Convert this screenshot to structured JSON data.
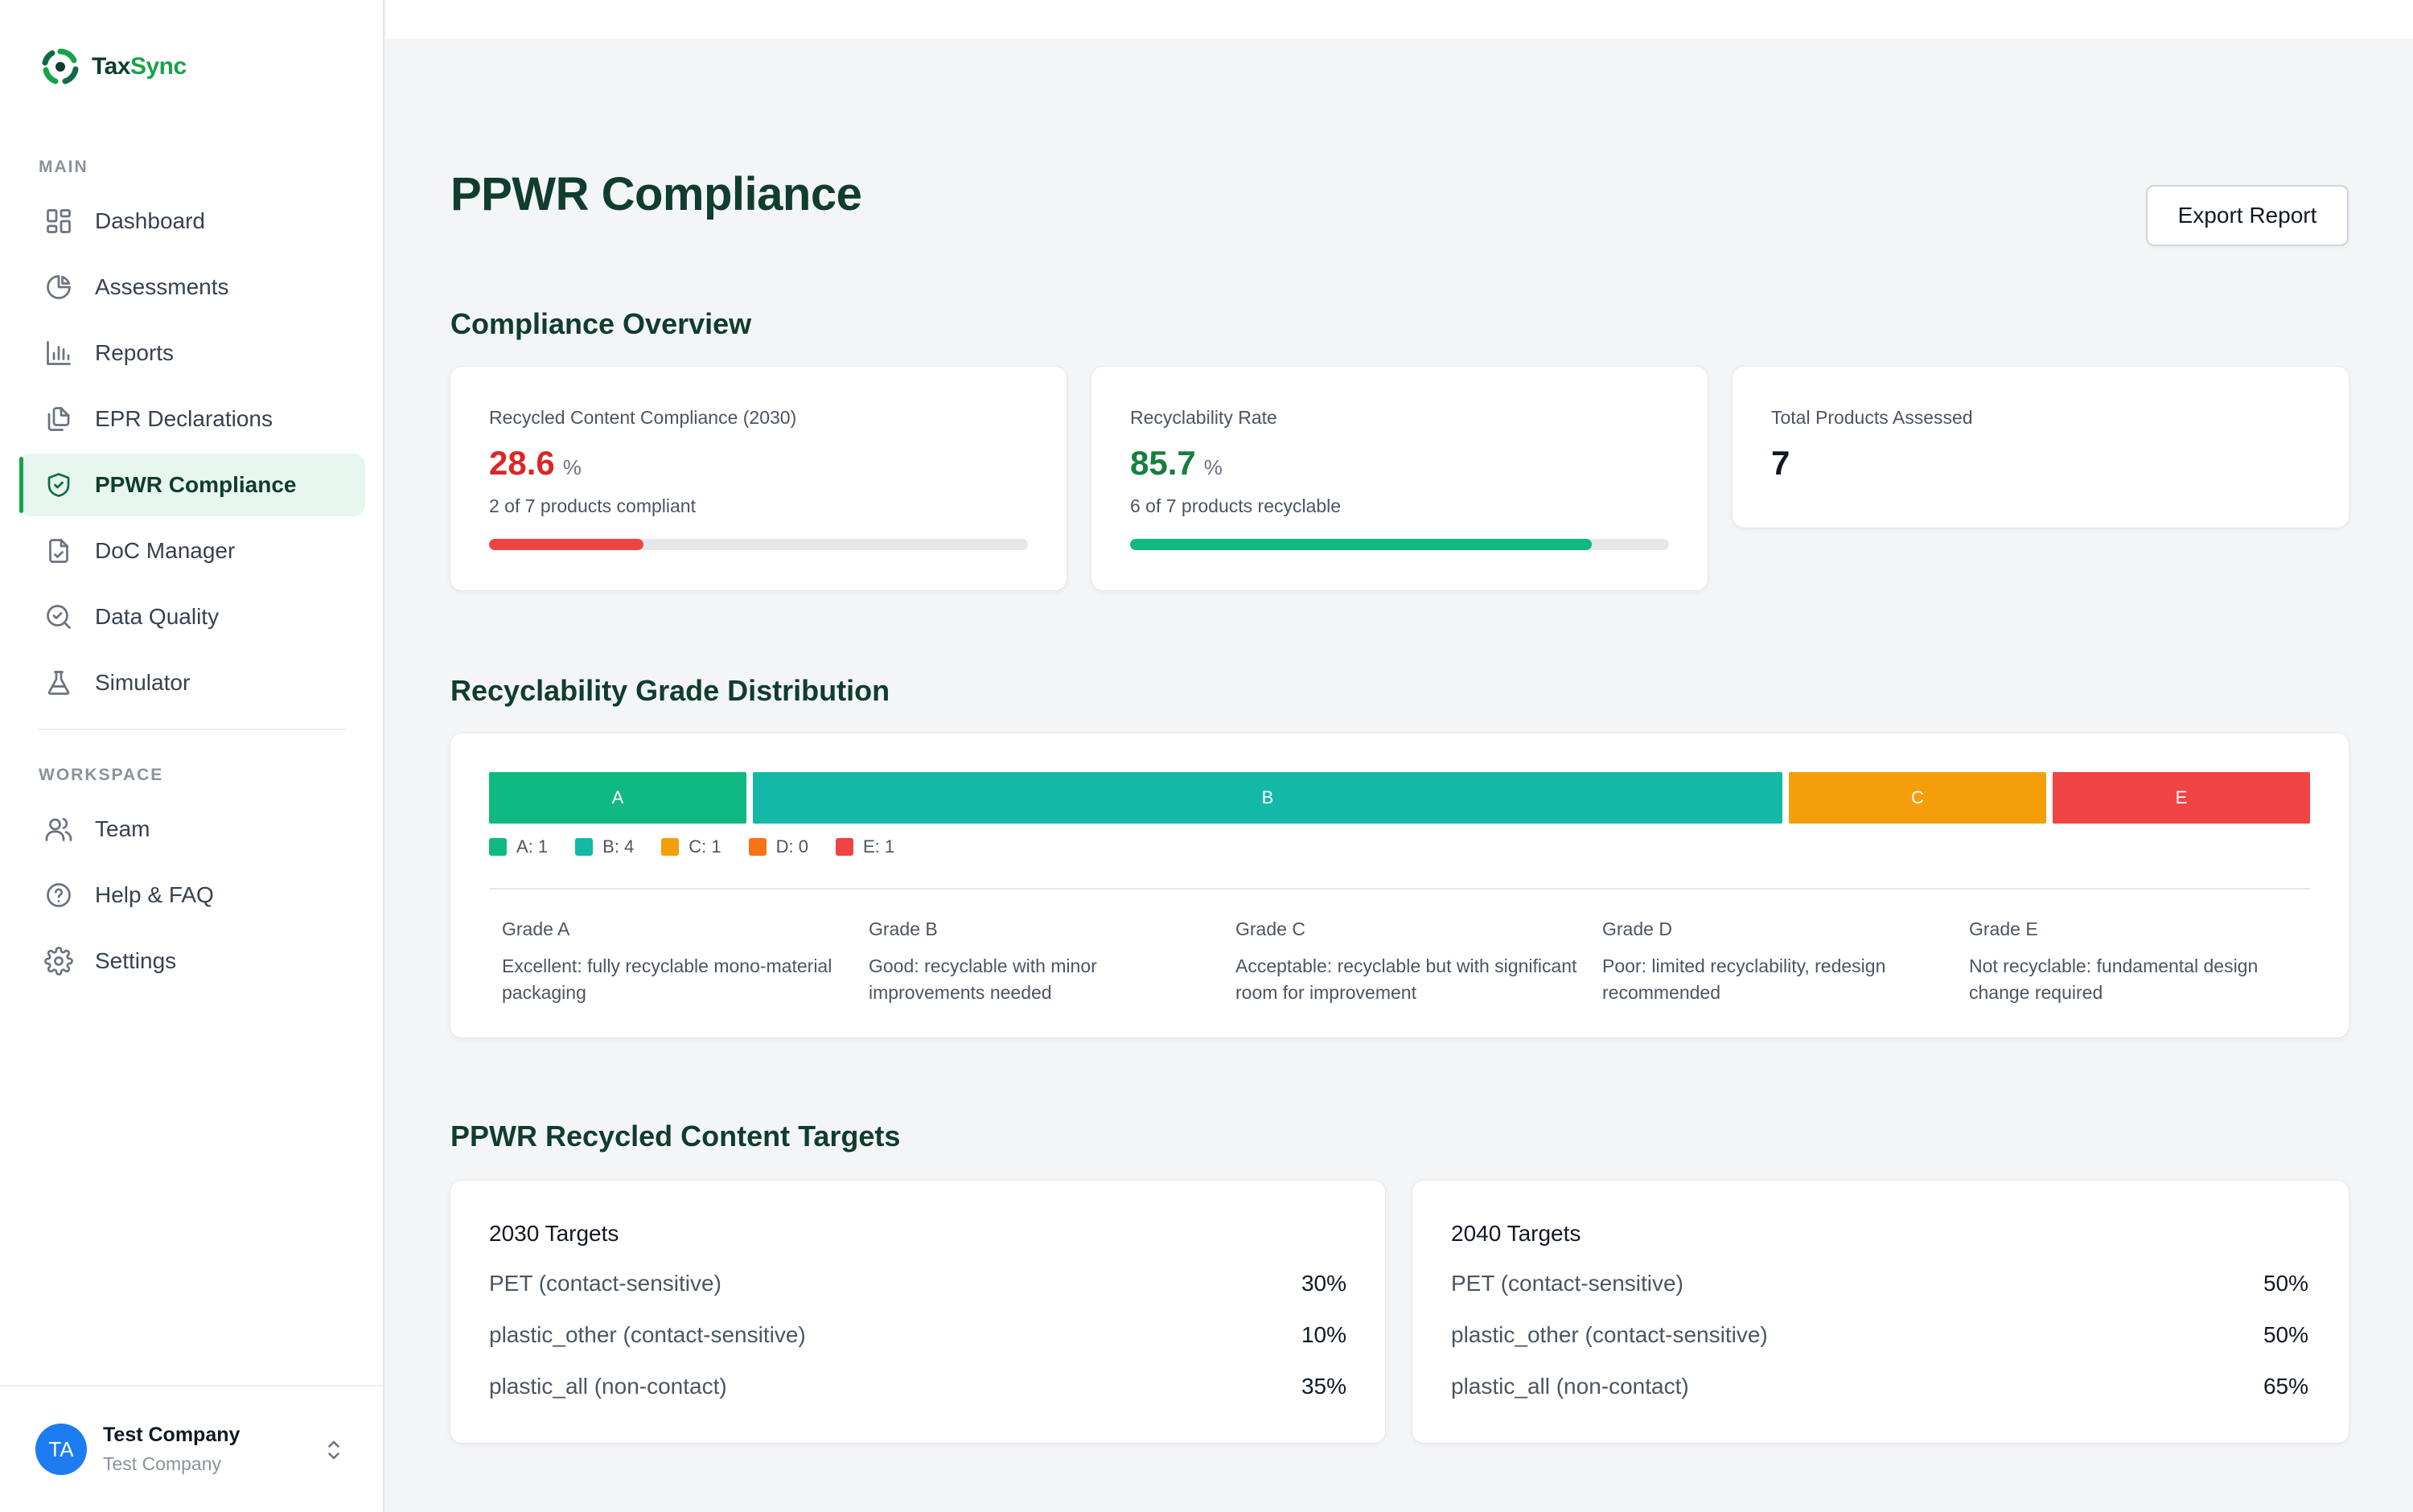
{
  "brand": {
    "name_part1": "Tax",
    "name_part2": "Sync",
    "accent": "#16a34a"
  },
  "sidebar": {
    "main_label": "MAIN",
    "main_items": [
      {
        "label": "Dashboard",
        "icon": "dashboard-icon"
      },
      {
        "label": "Assessments",
        "icon": "pie-chart-icon"
      },
      {
        "label": "Reports",
        "icon": "bar-chart-icon"
      },
      {
        "label": "EPR Declarations",
        "icon": "documents-icon"
      },
      {
        "label": "PPWR Compliance",
        "icon": "shield-check-icon",
        "active": true
      },
      {
        "label": "DoC Manager",
        "icon": "file-check-icon"
      },
      {
        "label": "Data Quality",
        "icon": "search-check-icon"
      },
      {
        "label": "Simulator",
        "icon": "flask-icon"
      }
    ],
    "workspace_label": "WORKSPACE",
    "workspace_items": [
      {
        "label": "Team",
        "icon": "users-icon"
      },
      {
        "label": "Help & FAQ",
        "icon": "help-icon"
      },
      {
        "label": "Settings",
        "icon": "gear-icon"
      }
    ]
  },
  "user": {
    "initials": "TA",
    "name": "Test Company",
    "org": "Test Company"
  },
  "header": {
    "title": "PPWR Compliance",
    "export_label": "Export Report"
  },
  "overview": {
    "title": "Compliance Overview",
    "cards": [
      {
        "label": "Recycled Content Compliance (2030)",
        "value": "28.6",
        "unit": "%",
        "sub": "2 of 7 products compliant",
        "progress": 0.286,
        "color": "#dc2626",
        "bar_color": "#ef4444"
      },
      {
        "label": "Recyclability Rate",
        "value": "85.7",
        "unit": "%",
        "sub": "6 of 7 products recyclable",
        "progress": 0.857,
        "color": "#15803d",
        "bar_color": "#10b981"
      },
      {
        "label": "Total Products Assessed",
        "value": "7"
      }
    ]
  },
  "grades": {
    "title": "Recyclability Grade Distribution",
    "segments": [
      {
        "label": "A",
        "count": 1,
        "color": "#10b981"
      },
      {
        "label": "B",
        "count": 4,
        "color": "#14b8a6"
      },
      {
        "label": "C",
        "count": 1,
        "color": "#f59e0b"
      },
      {
        "label": "E",
        "count": 1,
        "color": "#ef4444"
      }
    ],
    "legend": [
      {
        "label": "A: 1",
        "color": "#10b981"
      },
      {
        "label": "B: 4",
        "color": "#14b8a6"
      },
      {
        "label": "C: 1",
        "color": "#f59e0b"
      },
      {
        "label": "D: 0",
        "color": "#f97316"
      },
      {
        "label": "E: 1",
        "color": "#ef4444"
      }
    ],
    "descriptions": [
      {
        "title": "Grade A",
        "text": "Excellent: fully recyclable mono-material packaging"
      },
      {
        "title": "Grade B",
        "text": "Good: recyclable with minor improvements needed"
      },
      {
        "title": "Grade C",
        "text": "Acceptable: recyclable but with significant room for improvement"
      },
      {
        "title": "Grade D",
        "text": "Poor: limited recyclability, redesign recommended"
      },
      {
        "title": "Grade E",
        "text": "Not recyclable: fundamental design change required"
      }
    ]
  },
  "targets": {
    "title": "PPWR Recycled Content Targets",
    "groups": [
      {
        "title": "2030 Targets",
        "rows": [
          {
            "k": "PET (contact-sensitive)",
            "v": "30%"
          },
          {
            "k": "plastic_other (contact-sensitive)",
            "v": "10%"
          },
          {
            "k": "plastic_all (non-contact)",
            "v": "35%"
          }
        ]
      },
      {
        "title": "2040 Targets",
        "rows": [
          {
            "k": "PET (contact-sensitive)",
            "v": "50%"
          },
          {
            "k": "plastic_other (contact-sensitive)",
            "v": "50%"
          },
          {
            "k": "plastic_all (non-contact)",
            "v": "65%"
          }
        ]
      }
    ]
  }
}
